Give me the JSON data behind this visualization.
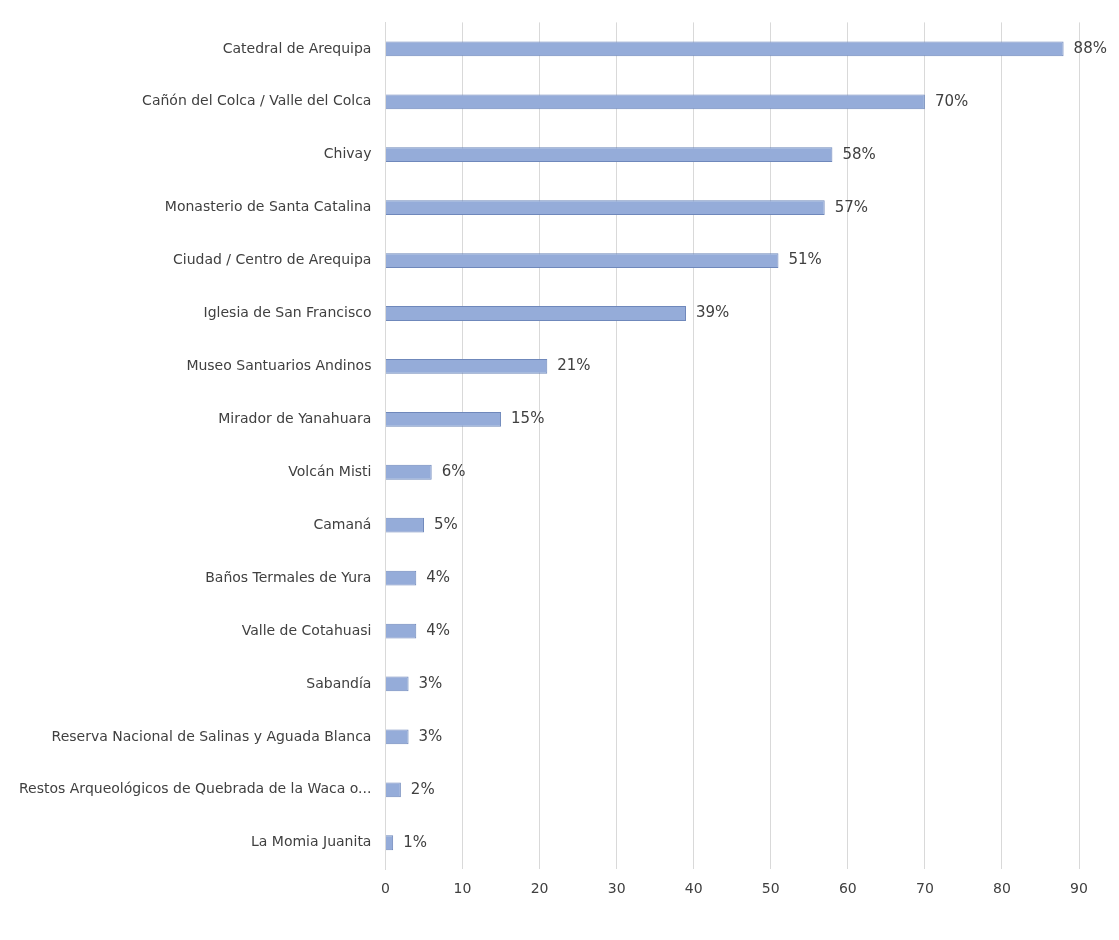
{
  "chart_data": {
    "type": "bar",
    "orientation": "horizontal",
    "categories": [
      "Catedral de Arequipa",
      "Cañón del Colca / Valle del Colca",
      "Chivay",
      "Monasterio de Santa Catalina",
      "Ciudad / Centro de Arequipa",
      "Iglesia de San Francisco",
      "Museo Santuarios Andinos",
      "Mirador de Yanahuara",
      "Volcán Misti",
      "Camaná",
      "Baños Termales de Yura",
      "Valle de Cotahuasi",
      "Sabandía",
      "Reserva Nacional de Salinas y Aguada Blanca",
      "Restos Arqueológicos de Quebrada de la Waca o...",
      "La Momia Juanita"
    ],
    "values": [
      88,
      70,
      58,
      57,
      51,
      39,
      21,
      15,
      6,
      5,
      4,
      4,
      3,
      3,
      2,
      1
    ],
    "value_labels": [
      "88%",
      "70%",
      "58%",
      "57%",
      "51%",
      "39%",
      "21%",
      "15%",
      "6%",
      "5%",
      "4%",
      "4%",
      "3%",
      "3%",
      "2%",
      "1%"
    ],
    "color": "#95acd9",
    "xlim": [
      0,
      90
    ],
    "xticks": [
      0,
      10,
      20,
      30,
      40,
      50,
      60,
      70,
      80,
      90
    ],
    "grid": "x"
  }
}
